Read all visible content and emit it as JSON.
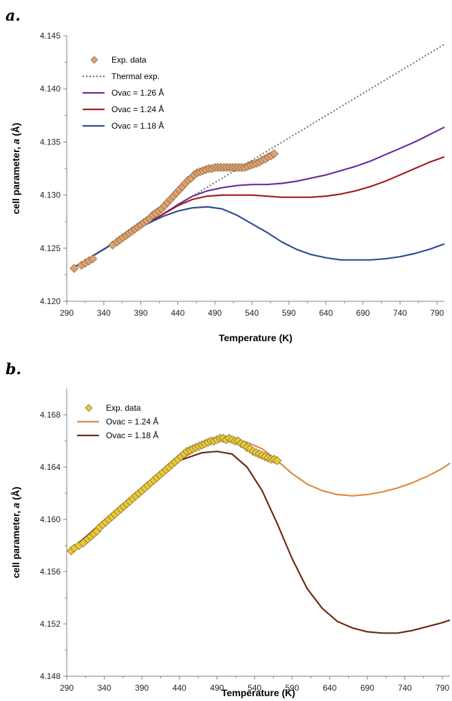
{
  "chart_data": [
    {
      "panel_label": "a.",
      "type": "line",
      "xlabel": "Temperature (K)",
      "ylabel": "cell parameter, a (Å)",
      "xlim": [
        290,
        800
      ],
      "ylim": [
        4.12,
        4.145
      ],
      "x_ticks": [
        290,
        340,
        390,
        440,
        490,
        540,
        590,
        640,
        690,
        740,
        790
      ],
      "y_ticks": [
        "4.120",
        "4.125",
        "4.130",
        "4.135",
        "4.140",
        "4.145"
      ],
      "grid": false,
      "legend_position": "top-left",
      "series": [
        {
          "name": "Exp. data",
          "kind": "markers",
          "color": "#e0a070",
          "x": [
            300,
            310,
            315,
            320,
            325,
            352,
            358,
            362,
            366,
            370,
            374,
            378,
            382,
            386,
            390,
            394,
            398,
            402,
            406,
            410,
            414,
            418,
            422,
            426,
            430,
            434,
            438,
            442,
            446,
            450,
            454,
            458,
            462,
            466,
            470,
            474,
            478,
            482,
            486,
            490,
            494,
            498,
            502,
            506,
            510,
            514,
            518,
            522,
            526,
            530,
            534,
            538,
            542,
            546,
            550,
            554,
            558,
            562,
            566,
            570
          ],
          "y": [
            4.1231,
            4.1234,
            4.1236,
            4.1238,
            4.124,
            4.1253,
            4.1256,
            4.1258,
            4.126,
            4.1262,
            4.1264,
            4.1266,
            4.1268,
            4.127,
            4.1272,
            4.1274,
            4.1276,
            4.1278,
            4.1281,
            4.1283,
            4.1285,
            4.1287,
            4.129,
            4.1293,
            4.1296,
            4.1299,
            4.1302,
            4.1305,
            4.1308,
            4.1311,
            4.1314,
            4.1316,
            4.1319,
            4.1321,
            4.1322,
            4.1323,
            4.1324,
            4.1325,
            4.1325,
            4.1326,
            4.1326,
            4.1326,
            4.1326,
            4.1326,
            4.1326,
            4.1326,
            4.1326,
            4.1326,
            4.1326,
            4.1326,
            4.1327,
            4.1328,
            4.1329,
            4.133,
            4.1331,
            4.1333,
            4.1334,
            4.1336,
            4.1337,
            4.1339
          ]
        },
        {
          "name": "Thermal exp.",
          "kind": "dotted",
          "color": "#666666",
          "x": [
            300,
            800
          ],
          "y": [
            4.1232,
            4.1442
          ]
        },
        {
          "name": "Ovac = 1.26 Å",
          "kind": "line",
          "color": "#6a2a9a",
          "x": [
            300,
            340,
            390,
            420,
            440,
            460,
            480,
            500,
            520,
            540,
            560,
            580,
            600,
            620,
            640,
            660,
            680,
            700,
            720,
            740,
            760,
            780,
            800
          ],
          "y": [
            4.1232,
            4.1249,
            4.127,
            4.1282,
            4.1291,
            4.1299,
            4.1304,
            4.1307,
            4.1309,
            4.131,
            4.131,
            4.1311,
            4.1313,
            4.1316,
            4.1319,
            4.1323,
            4.1327,
            4.1332,
            4.1338,
            4.1344,
            4.135,
            4.1357,
            4.1364
          ]
        },
        {
          "name": "Ovac = 1.24 Å",
          "kind": "line",
          "color": "#a01c24",
          "x": [
            300,
            340,
            390,
            420,
            440,
            460,
            480,
            500,
            520,
            540,
            560,
            580,
            600,
            620,
            640,
            660,
            680,
            700,
            720,
            740,
            760,
            780,
            800
          ],
          "y": [
            4.1232,
            4.1249,
            4.127,
            4.1282,
            4.129,
            4.1296,
            4.1299,
            4.13,
            4.13,
            4.13,
            4.1299,
            4.1298,
            4.1298,
            4.1298,
            4.1299,
            4.1301,
            4.1304,
            4.1308,
            4.1313,
            4.1319,
            4.1325,
            4.1331,
            4.1336
          ]
        },
        {
          "name": "Ovac = 1.18 Å",
          "kind": "line",
          "color": "#2e4a96",
          "x": [
            300,
            340,
            390,
            420,
            440,
            460,
            480,
            500,
            520,
            540,
            560,
            580,
            600,
            620,
            640,
            660,
            680,
            700,
            720,
            740,
            760,
            780,
            800
          ],
          "y": [
            4.1232,
            4.1249,
            4.127,
            4.128,
            4.1285,
            4.1288,
            4.1289,
            4.1287,
            4.1281,
            4.1273,
            4.1265,
            4.1256,
            4.1249,
            4.1244,
            4.1241,
            4.1239,
            4.1239,
            4.1239,
            4.124,
            4.1242,
            4.1245,
            4.1249,
            4.1254
          ]
        }
      ]
    },
    {
      "panel_label": "b.",
      "type": "line",
      "xlabel": "Temperature (K)",
      "ylabel": "cell parameter, a (Å)",
      "xlim": [
        290,
        800
      ],
      "ylim": [
        4.148,
        4.17
      ],
      "x_ticks": [
        290,
        340,
        390,
        440,
        490,
        540,
        590,
        640,
        690,
        740,
        790
      ],
      "y_ticks": [
        "4.148",
        "4.152",
        "4.156",
        "4.160",
        "4.164",
        "4.168"
      ],
      "grid": false,
      "legend_position": "top-left",
      "series": [
        {
          "name": "Exp. data",
          "kind": "markers",
          "color": "#e8cc30",
          "x": [
            296,
            300,
            306,
            312,
            318,
            322,
            326,
            330,
            334,
            338,
            342,
            346,
            350,
            354,
            358,
            362,
            366,
            370,
            374,
            378,
            382,
            386,
            390,
            394,
            398,
            402,
            406,
            410,
            414,
            418,
            422,
            426,
            430,
            434,
            438,
            442,
            446,
            450,
            454,
            458,
            462,
            466,
            470,
            474,
            478,
            482,
            486,
            490,
            494,
            498,
            502,
            506,
            510,
            514,
            518,
            522,
            526,
            530,
            534,
            538,
            542,
            546,
            550,
            554,
            558,
            562,
            566,
            570
          ],
          "y": [
            4.1576,
            4.1578,
            4.158,
            4.1582,
            4.1585,
            4.1587,
            4.1589,
            4.1591,
            4.1594,
            4.1596,
            4.1598,
            4.16,
            4.1602,
            4.1604,
            4.1606,
            4.1608,
            4.161,
            4.1612,
            4.1614,
            4.1616,
            4.1618,
            4.162,
            4.1622,
            4.1624,
            4.1626,
            4.1628,
            4.163,
            4.1632,
            4.1634,
            4.1636,
            4.1638,
            4.164,
            4.1642,
            4.1644,
            4.1646,
            4.1648,
            4.165,
            4.1652,
            4.1653,
            4.1654,
            4.1655,
            4.1656,
            4.1657,
            4.1658,
            4.1659,
            4.166,
            4.166,
            4.1661,
            4.1662,
            4.1662,
            4.1661,
            4.1662,
            4.1661,
            4.166,
            4.166,
            4.1658,
            4.1657,
            4.1655,
            4.1654,
            4.1652,
            4.1651,
            4.165,
            4.1649,
            4.1648,
            4.1647,
            4.1646,
            4.1646,
            4.1645
          ]
        },
        {
          "name": "Ovac = 1.24 Å",
          "kind": "line",
          "color": "#e08a3c",
          "x": [
            296,
            340,
            390,
            440,
            470,
            490,
            510,
            530,
            550,
            570,
            590,
            610,
            630,
            650,
            670,
            690,
            710,
            730,
            750,
            770,
            790,
            800
          ],
          "y": [
            4.1577,
            4.1599,
            4.1624,
            4.1645,
            4.1656,
            4.166,
            4.1661,
            4.1659,
            4.1654,
            4.1645,
            4.1635,
            4.1627,
            4.1622,
            4.1619,
            4.1618,
            4.1619,
            4.1621,
            4.1624,
            4.1628,
            4.1633,
            4.1639,
            4.1643
          ]
        },
        {
          "name": "Ovac = 1.18 Å",
          "kind": "line",
          "color": "#6a2a10",
          "x": [
            296,
            340,
            390,
            440,
            470,
            490,
            510,
            530,
            550,
            570,
            590,
            610,
            630,
            650,
            670,
            690,
            710,
            730,
            750,
            770,
            790,
            800
          ],
          "y": [
            4.1577,
            4.1599,
            4.1624,
            4.1645,
            4.1651,
            4.1652,
            4.165,
            4.164,
            4.1622,
            4.1597,
            4.157,
            4.1547,
            4.1532,
            4.1522,
            4.1517,
            4.1514,
            4.1513,
            4.1513,
            4.1515,
            4.1518,
            4.1521,
            4.1523
          ]
        }
      ]
    }
  ]
}
